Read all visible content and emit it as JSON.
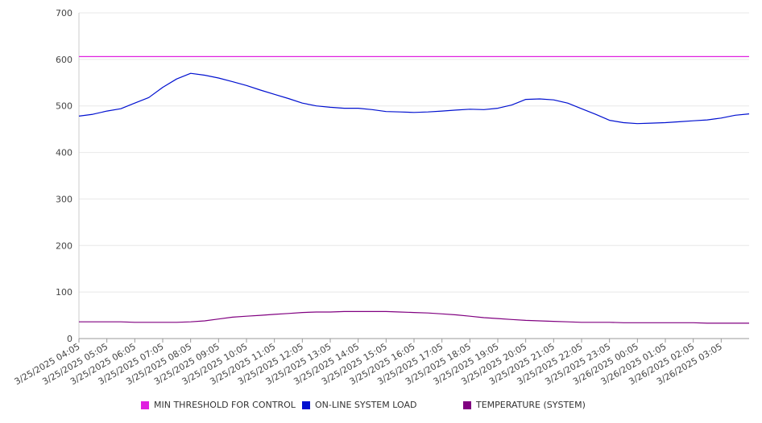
{
  "chart_data": {
    "type": "line",
    "title": "",
    "xlabel": "",
    "ylabel": "",
    "ylim": [
      0,
      700
    ],
    "yticks": [
      0,
      100,
      200,
      300,
      400,
      500,
      600,
      700
    ],
    "grid": true,
    "legend_placement": "bottom",
    "x_tick_labels": [
      "3/25/2025 04:05",
      "3/25/2025 05:05",
      "3/25/2025 06:05",
      "3/25/2025 07:05",
      "3/25/2025 08:05",
      "3/25/2025 09:05",
      "3/25/2025 10:05",
      "3/25/2025 11:05",
      "3/25/2025 12:05",
      "3/25/2025 13:05",
      "3/25/2025 14:05",
      "3/25/2025 15:05",
      "3/25/2025 16:05",
      "3/25/2025 17:05",
      "3/25/2025 18:05",
      "3/25/2025 19:05",
      "3/25/2025 20:05",
      "3/25/2025 21:05",
      "3/25/2025 22:05",
      "3/25/2025 23:05",
      "3/26/2025 00:05",
      "3/26/2025 01:05",
      "3/26/2025 02:05",
      "3/26/2025 03:05"
    ],
    "x": [
      "3/25/2025 04:05",
      "3/25/2025 04:35",
      "3/25/2025 05:05",
      "3/25/2025 05:35",
      "3/25/2025 06:05",
      "3/25/2025 06:35",
      "3/25/2025 07:05",
      "3/25/2025 07:35",
      "3/25/2025 08:05",
      "3/25/2025 08:35",
      "3/25/2025 09:05",
      "3/25/2025 09:35",
      "3/25/2025 10:05",
      "3/25/2025 10:35",
      "3/25/2025 11:05",
      "3/25/2025 11:35",
      "3/25/2025 12:05",
      "3/25/2025 12:35",
      "3/25/2025 13:05",
      "3/25/2025 13:35",
      "3/25/2025 14:05",
      "3/25/2025 14:35",
      "3/25/2025 15:05",
      "3/25/2025 15:35",
      "3/25/2025 16:05",
      "3/25/2025 16:35",
      "3/25/2025 17:05",
      "3/25/2025 17:35",
      "3/25/2025 18:05",
      "3/25/2025 18:35",
      "3/25/2025 19:05",
      "3/25/2025 19:35",
      "3/25/2025 20:05",
      "3/25/2025 20:35",
      "3/25/2025 21:05",
      "3/25/2025 21:35",
      "3/25/2025 22:05",
      "3/25/2025 22:35",
      "3/25/2025 23:05",
      "3/25/2025 23:35",
      "3/26/2025 00:05",
      "3/26/2025 00:35",
      "3/26/2025 01:05",
      "3/26/2025 01:35",
      "3/26/2025 02:05",
      "3/26/2025 02:35",
      "3/26/2025 03:05",
      "3/26/2025 03:35",
      "3/26/2025 04:05"
    ],
    "series": [
      {
        "name": "MIN THRESHOLD FOR CONTROL",
        "color": "#e020e0",
        "values": [
          606,
          606,
          606,
          606,
          606,
          606,
          606,
          606,
          606,
          606,
          606,
          606,
          606,
          606,
          606,
          606,
          606,
          606,
          606,
          606,
          606,
          606,
          606,
          606,
          606,
          606,
          606,
          606,
          606,
          606,
          606,
          606,
          606,
          606,
          606,
          606,
          606,
          606,
          606,
          606,
          606,
          606,
          606,
          606,
          606,
          606,
          606,
          606,
          606
        ]
      },
      {
        "name": "ON-LINE SYSTEM LOAD",
        "color": "#0010d0",
        "values": [
          478,
          482,
          489,
          494,
          506,
          518,
          540,
          558,
          570,
          566,
          560,
          552,
          544,
          534,
          525,
          516,
          506,
          500,
          497,
          495,
          495,
          492,
          488,
          487,
          486,
          487,
          489,
          491,
          493,
          492,
          495,
          502,
          514,
          515,
          513,
          506,
          494,
          482,
          469,
          464,
          462,
          463,
          464,
          466,
          468,
          470,
          474,
          480,
          483
        ]
      },
      {
        "name": "TEMPERATURE (SYSTEM)",
        "color": "#800080",
        "values": [
          36,
          36,
          36,
          36,
          35,
          35,
          35,
          35,
          36,
          38,
          42,
          46,
          48,
          50,
          52,
          54,
          56,
          57,
          57,
          58,
          58,
          58,
          58,
          57,
          56,
          55,
          53,
          51,
          48,
          45,
          43,
          41,
          39,
          38,
          37,
          36,
          35,
          35,
          35,
          34,
          34,
          34,
          34,
          34,
          34,
          33,
          33,
          33,
          33
        ]
      }
    ]
  }
}
